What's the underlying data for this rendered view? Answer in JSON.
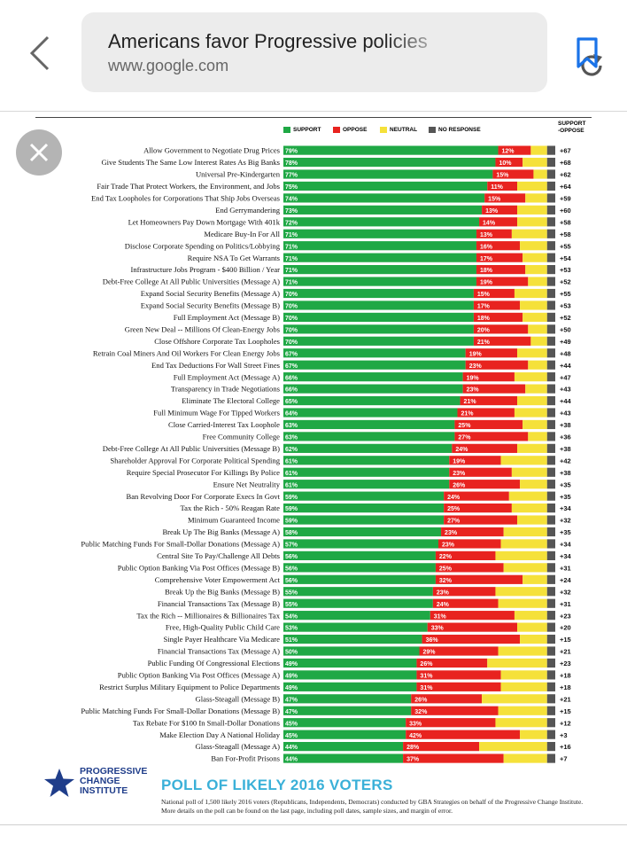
{
  "browser": {
    "page_title": "Americans favor Progressive policies",
    "url": "www.google.com",
    "icons": {
      "back": "chevron-left-icon",
      "reload": "reload-icon",
      "bookmark": "bookmark-icon",
      "close": "close-icon"
    }
  },
  "legend": {
    "support": "SUPPORT",
    "oppose": "OPPOSE",
    "neutral": "NEUTRAL",
    "no_response": "NO RESPONSE"
  },
  "column_header": {
    "line1": "SUPPORT",
    "line2": "-OPPOSE"
  },
  "colors": {
    "support": "#1fa845",
    "oppose": "#e8231f",
    "neutral": "#f5e13a",
    "no_response": "#555555"
  },
  "chart_data": {
    "type": "bar",
    "stacked": true,
    "orientation": "horizontal",
    "series": [
      {
        "name": "SUPPORT",
        "values": [
          79,
          78,
          77,
          75,
          74,
          73,
          72,
          71,
          71,
          71,
          71,
          71,
          70,
          70,
          70,
          70,
          70,
          67,
          67,
          66,
          66,
          65,
          64,
          63,
          63,
          62,
          61,
          61,
          61,
          59,
          59,
          59,
          58,
          57,
          56,
          56,
          56,
          55,
          55,
          54,
          53,
          51,
          50,
          49,
          49,
          49,
          47,
          47,
          45,
          45,
          44,
          44
        ]
      },
      {
        "name": "OPPOSE",
        "values": [
          12,
          10,
          15,
          11,
          15,
          13,
          14,
          13,
          16,
          17,
          18,
          19,
          15,
          17,
          18,
          20,
          21,
          19,
          23,
          19,
          23,
          21,
          21,
          25,
          27,
          24,
          19,
          23,
          26,
          24,
          25,
          27,
          23,
          23,
          22,
          25,
          32,
          23,
          24,
          31,
          33,
          36,
          29,
          26,
          31,
          31,
          26,
          32,
          33,
          42,
          28,
          37
        ]
      }
    ],
    "categories": [
      "Allow Government to Negotiate Drug Prices",
      "Give Students The Same Low Interest Rates As Big Banks",
      "Universal Pre-Kindergarten",
      "Fair Trade That Protect Workers, the Environment, and Jobs",
      "End Tax Loopholes for Corporations That Ship Jobs Overseas",
      "End Gerrymandering",
      "Let Homeowners Pay Down Mortgage With 401k",
      "Medicare Buy-In For All",
      "Disclose Corporate Spending on Politics/Lobbying",
      "Require NSA To Get Warrants",
      "Infrastructure Jobs Program - $400 Billion / Year",
      "Debt-Free College At All Public Universities (Message A)",
      "Expand Social Security Benefits (Message A)",
      "Expand Social Security Benefits (Message B)",
      "Full Employment Act (Message B)",
      "Green New Deal -- Millions Of Clean-Energy Jobs",
      "Close Offshore Corporate Tax Loopholes",
      "Retrain Coal Miners And Oil Workers For Clean Energy Jobs",
      "End Tax Deductions For Wall Street Fines",
      "Full Employment Act (Message A)",
      "Transparency in Trade Negotiations",
      "Eliminate The Electoral College",
      "Full Minimum Wage For Tipped Workers",
      "Close Carried-Interest Tax Loophole",
      "Free Community College",
      "Debt-Free College At All Public Universities (Message B)",
      "Shareholder Approval For Corporate Political Spending",
      "Require Special Prosecutor For Killings By Police",
      "Ensure Net Neutrality",
      "Ban Revolving Door For Corporate Execs In Govt",
      "Tax the Rich - 50% Reagan Rate",
      "Minimum Guaranteed Income",
      "Break Up The Big Banks (Message A)",
      "Public Matching Funds For Small-Dollar Donations (Message A)",
      "Central Site To Pay/Challenge All Debts",
      "Public Option Banking Via Post Offices (Message B)",
      "Comprehensive Voter Empowerment Act",
      "Break Up the Big Banks (Message B)",
      "Financial Transactions Tax (Message B)",
      "Tax the Rich -- Millionaires & Billionaires Tax",
      "Free, High-Quality Public Child Care",
      "Single Payer Healthcare Via Medicare",
      "Financial Transactions Tax (Message A)",
      "Public Funding Of Congressional Elections",
      "Public Option Banking Via Post Offices (Message A)",
      "Restrict Surplus Military Equipment to Police Departments",
      "Glass-Steagall (Message B)",
      "Public Matching Funds For Small-Dollar Donations (Message B)",
      "Tax Rebate For $100 In Small-Dollar Donations",
      "Make Election Day A National Holiday",
      "Glass-Steagall (Message A)",
      "Ban For-Profit Prisons"
    ],
    "net_labels": [
      "+67",
      "+68",
      "+62",
      "+64",
      "+59",
      "+60",
      "+58",
      "+58",
      "+55",
      "+54",
      "+53",
      "+52",
      "+55",
      "+53",
      "+52",
      "+50",
      "+49",
      "+48",
      "+44",
      "+47",
      "+43",
      "+44",
      "+43",
      "+38",
      "+36",
      "+38",
      "+42",
      "+38",
      "+35",
      "+35",
      "+34",
      "+32",
      "+35",
      "+34",
      "+34",
      "+31",
      "+24",
      "+32",
      "+31",
      "+23",
      "+20",
      "+15",
      "+21",
      "+23",
      "+18",
      "+18",
      "+21",
      "+15",
      "+12",
      "+3",
      "+16",
      "+7"
    ],
    "value_suffix": "%"
  },
  "footer": {
    "org_name_lines": [
      "PROGRESSIVE",
      "CHANGE",
      "INSTITUTE"
    ],
    "headline": "POLL OF LIKELY 2016 VOTERS",
    "note": "National poll of 1,500 likely 2016 voters (Republicans, Independents, Democrats) conducted by GBA Strategies on behalf of the Progressive Change Institute. More details on the poll can be found on the last page, including poll dates, sample sizes, and margin of error."
  }
}
